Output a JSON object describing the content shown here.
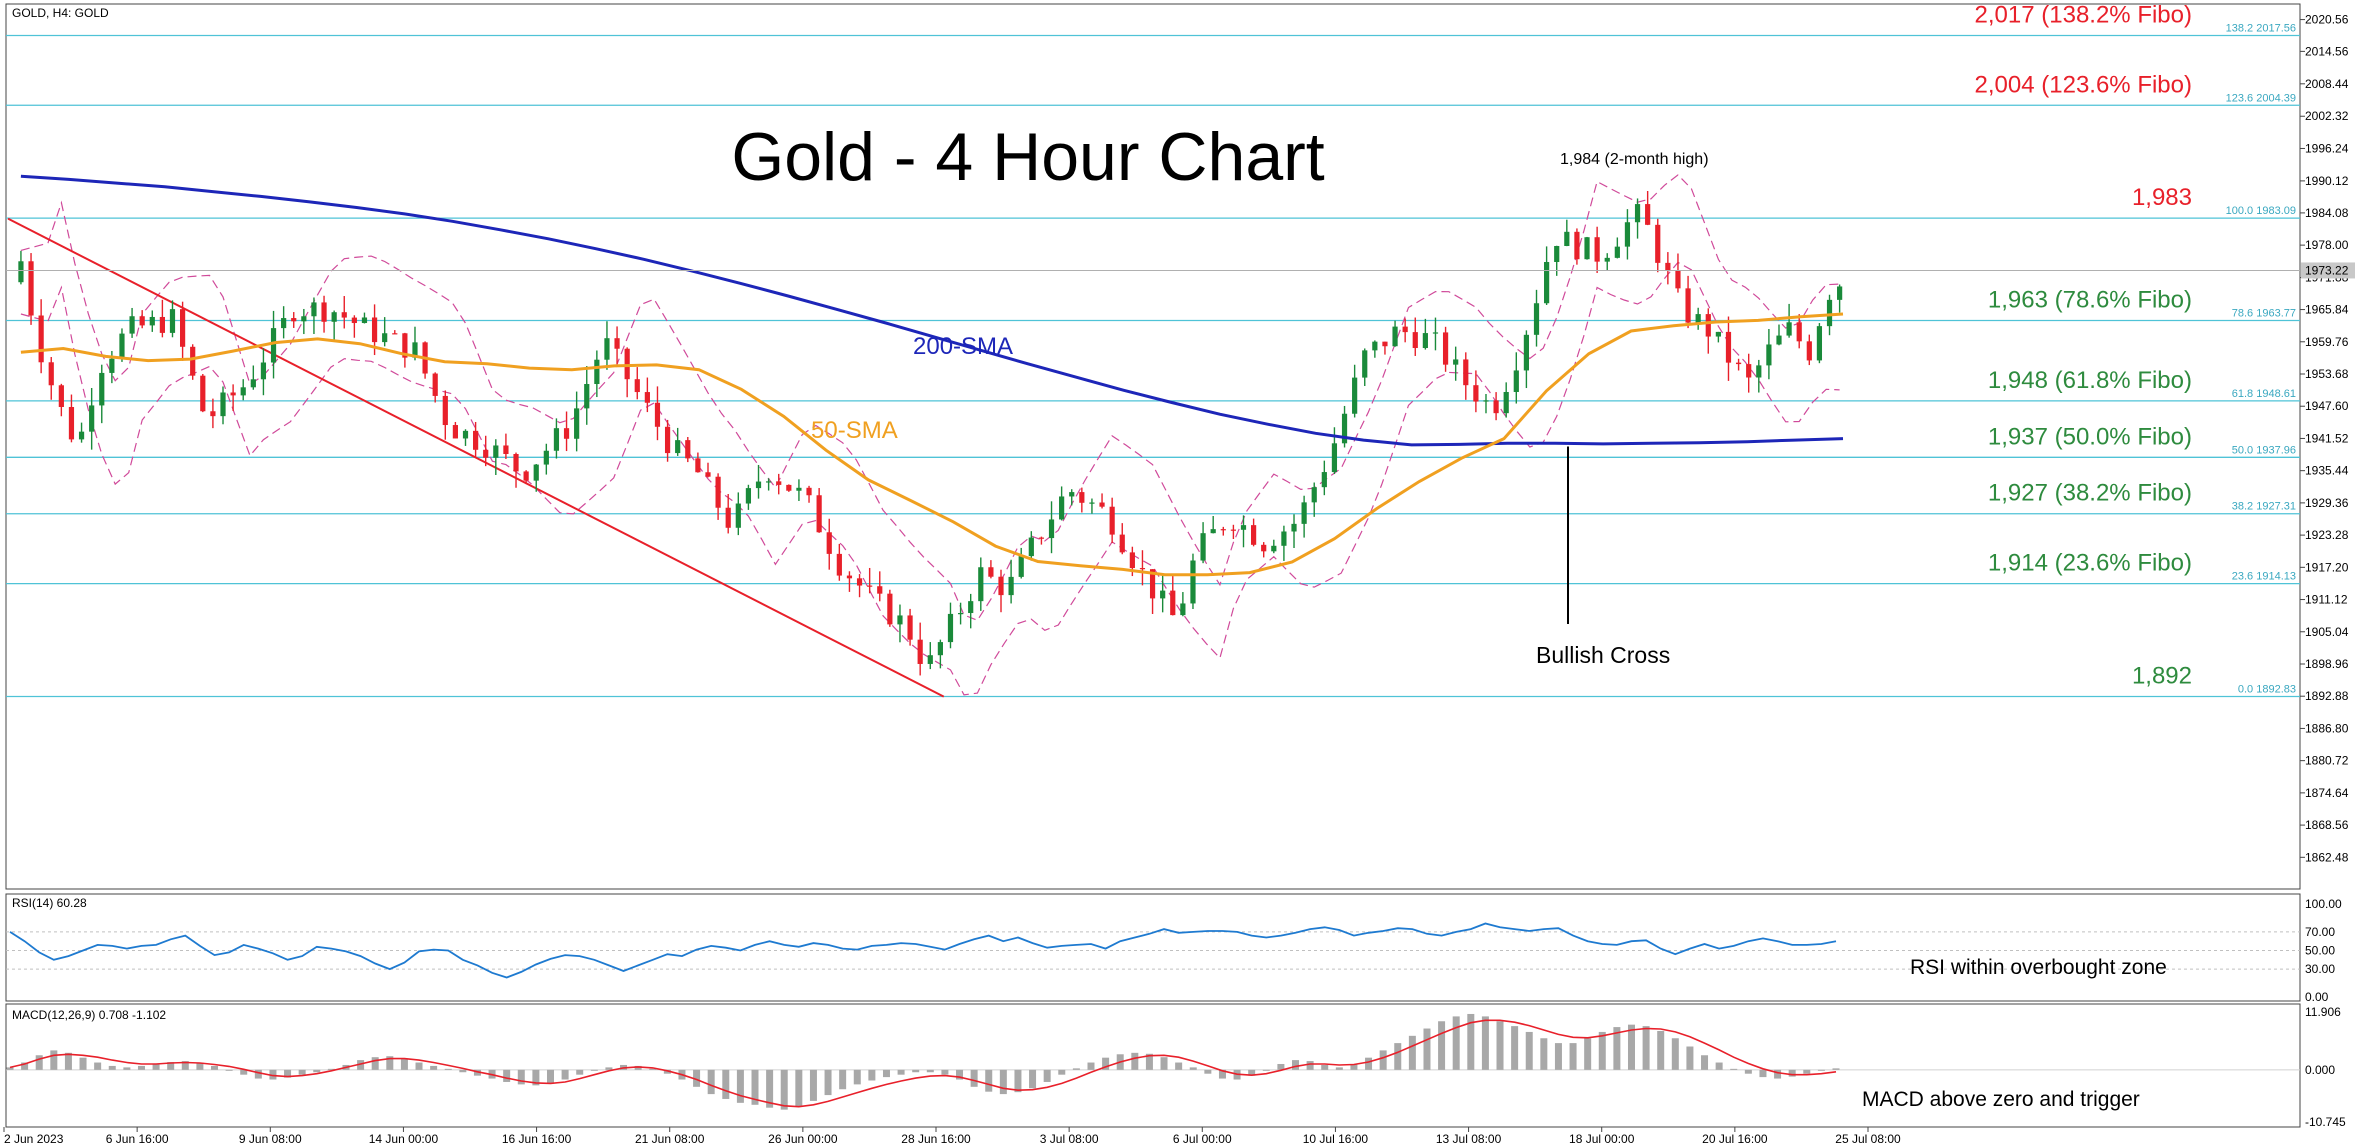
{
  "header": {
    "symbol": "GOLD, H4:  GOLD"
  },
  "title": "Gold - 4 Hour Chart",
  "chart_data": {
    "type": "candlestick",
    "symbol": "GOLD",
    "timeframe": "H4",
    "ylim": [
      1856.5,
      2023.5
    ],
    "price_ticks": [
      "2020.56",
      "2014.56",
      "2008.44",
      "2002.32",
      "1996.24",
      "1990.12",
      "1984.08",
      "1978.00",
      "1971.88",
      "1965.84",
      "1959.76",
      "1953.68",
      "1947.60",
      "1941.52",
      "1935.44",
      "1929.36",
      "1923.28",
      "1917.20",
      "1911.12",
      "1905.04",
      "1898.96",
      "1892.88",
      "1886.80",
      "1880.72",
      "1874.64",
      "1868.56",
      "1862.48"
    ],
    "current_price": "1973.22",
    "x_labels": [
      "2 Jun 2023",
      "6 Jun 16:00",
      "9 Jun 08:00",
      "14 Jun 00:00",
      "16 Jun 16:00",
      "21 Jun 08:00",
      "26 Jun 00:00",
      "28 Jun 16:00",
      "3 Jul 08:00",
      "6 Jul 00:00",
      "10 Jul 16:00",
      "13 Jul 08:00",
      "18 Jul 00:00",
      "20 Jul 16:00",
      "25 Jul 08:00"
    ],
    "fibo_levels": [
      {
        "ratio": "138.2",
        "value": 2017.56,
        "label": "2,017 (138.2% Fibo)",
        "small": "138.2 2017.56"
      },
      {
        "ratio": "123.6",
        "value": 2004.39,
        "label": "2,004 (123.6% Fibo)",
        "small": "123.6 2004.39"
      },
      {
        "ratio": "100.0",
        "value": 1983.09,
        "label": "1,983",
        "small": "100.0 1983.09"
      },
      {
        "ratio": "78.6",
        "value": 1963.77,
        "label": "1,963 (78.6% Fibo)",
        "small": "78.6 1963.77"
      },
      {
        "ratio": "61.8",
        "value": 1948.61,
        "label": "1,948 (61.8% Fibo)",
        "small": "61.8 1948.61"
      },
      {
        "ratio": "50.0",
        "value": 1937.96,
        "label": "1,937 (50.0% Fibo)",
        "small": "50.0 1937.96"
      },
      {
        "ratio": "38.2",
        "value": 1927.31,
        "label": "1,927 (38.2% Fibo)",
        "small": "38.2 1927.31"
      },
      {
        "ratio": "23.6",
        "value": 1914.13,
        "label": "1,914 (23.6% Fibo)",
        "small": "23.6 1914.13"
      },
      {
        "ratio": "0.0",
        "value": 1892.83,
        "label": "1,892",
        "small": "0.0 1892.83"
      }
    ],
    "sma200": [
      1991.0,
      1990.4,
      1989.7,
      1989.0,
      1988.1,
      1987.2,
      1986.2,
      1985.1,
      1983.9,
      1982.5,
      1980.9,
      1979.2,
      1977.3,
      1975.3,
      1973.1,
      1970.8,
      1968.4,
      1965.9,
      1963.4,
      1960.8,
      1958.2,
      1955.6,
      1953.1,
      1950.6,
      1948.3,
      1946.1,
      1944.2,
      1942.5,
      1941.2,
      1940.3,
      1940.4,
      1940.6,
      1940.6,
      1940.5,
      1940.6,
      1940.7,
      1940.9,
      1941.2,
      1941.5
    ],
    "sma50": [
      1957.8,
      1958.5,
      1957.0,
      1956.2,
      1956.5,
      1958.0,
      1959.6,
      1960.3,
      1959.4,
      1957.5,
      1956.0,
      1955.6,
      1954.8,
      1954.5,
      1955.2,
      1955.4,
      1954.5,
      1950.8,
      1945.7,
      1939.3,
      1933.7,
      1929.8,
      1925.8,
      1921.2,
      1918.3,
      1917.5,
      1916.8,
      1915.8,
      1915.8,
      1916.2,
      1918.2,
      1922.6,
      1928.3,
      1933.4,
      1937.8,
      1941.5,
      1950.5,
      1957.5,
      1961.8,
      1962.8,
      1963.5,
      1963.8,
      1964.5,
      1965.0
    ],
    "sma_labels": {
      "sma200": "200-SMA",
      "sma50": "50-SMA"
    },
    "annotations": {
      "high": "1,984 (2-month high)",
      "cross": "Bullish Cross"
    },
    "rsi": {
      "title": "RSI(14) 60.28",
      "ticks": [
        "100.00",
        "70.00",
        "50.00",
        "30.00",
        "0.00"
      ],
      "ylim": [
        0,
        100
      ],
      "values": [
        70,
        60,
        48,
        40,
        44,
        50,
        56,
        55,
        52,
        55,
        56,
        62,
        66,
        55,
        45,
        48,
        56,
        52,
        47,
        40,
        44,
        54,
        52,
        49,
        44,
        36,
        30,
        37,
        49,
        51,
        50,
        40,
        34,
        26,
        21,
        27,
        35,
        41,
        45,
        44,
        40,
        34,
        28,
        34,
        40,
        46,
        44,
        51,
        55,
        53,
        50,
        56,
        60,
        56,
        54,
        58,
        56,
        52,
        51,
        55,
        56,
        58,
        57,
        54,
        51,
        57,
        62,
        66,
        60,
        64,
        58,
        53,
        55,
        56,
        57,
        52,
        60,
        64,
        68,
        73,
        69,
        70,
        71,
        71,
        70,
        66,
        64,
        66,
        69,
        73,
        75,
        72,
        66,
        69,
        71,
        74,
        73,
        68,
        66,
        70,
        73,
        79,
        75,
        73,
        71,
        73,
        74,
        66,
        60,
        57,
        56,
        60,
        61,
        52,
        46,
        52,
        57,
        52,
        55,
        60,
        63,
        60,
        56,
        56,
        57,
        60
      ],
      "label": "RSI within overbought zone"
    },
    "macd": {
      "title": "MACD(12,26,9) 0.708 -1.102",
      "ticks": [
        "11.906",
        "0.000",
        "-10.745"
      ],
      "ylim": [
        -10.745,
        11.906
      ],
      "histogram": [
        0.5,
        1.5,
        3.0,
        4.0,
        3.5,
        2.5,
        1.5,
        0.8,
        0.5,
        0.8,
        1.2,
        1.6,
        1.8,
        1.5,
        0.8,
        0.0,
        -1.0,
        -1.8,
        -2.0,
        -1.6,
        -1.0,
        -0.5,
        0.2,
        1.0,
        2.0,
        2.6,
        2.8,
        2.2,
        1.5,
        0.8,
        0.2,
        -0.5,
        -1.2,
        -1.8,
        -2.5,
        -3.0,
        -3.2,
        -2.8,
        -2.0,
        -1.0,
        -0.2,
        0.5,
        1.0,
        0.8,
        0.2,
        -0.8,
        -2.0,
        -3.5,
        -5.0,
        -6.0,
        -6.8,
        -7.2,
        -7.8,
        -8.2,
        -7.6,
        -6.4,
        -5.2,
        -4.0,
        -3.0,
        -2.2,
        -1.5,
        -1.0,
        -0.5,
        -0.5,
        -1.0,
        -2.0,
        -3.5,
        -4.5,
        -5.0,
        -4.6,
        -3.8,
        -2.5,
        -1.0,
        0.3,
        1.5,
        2.5,
        3.2,
        3.5,
        3.3,
        2.6,
        1.5,
        0.5,
        -0.8,
        -1.8,
        -2.0,
        -1.2,
        0.0,
        1.2,
        2.0,
        1.8,
        1.0,
        0.5,
        1.2,
        2.5,
        4.0,
        5.5,
        7.0,
        8.5,
        10.0,
        11.0,
        11.5,
        11.0,
        10.0,
        9.0,
        7.8,
        6.5,
        5.5,
        5.5,
        6.5,
        7.8,
        8.8,
        9.3,
        9.0,
        8.0,
        6.5,
        4.8,
        3.0,
        1.5,
        0.2,
        -0.8,
        -1.5,
        -1.8,
        -1.4,
        -0.8,
        -0.2,
        0.3
      ],
      "signal": [
        0.5,
        1.2,
        2.2,
        3.0,
        3.2,
        3.0,
        2.6,
        2.0,
        1.5,
        1.2,
        1.2,
        1.4,
        1.5,
        1.4,
        1.1,
        0.7,
        0.1,
        -0.6,
        -1.2,
        -1.4,
        -1.2,
        -0.8,
        -0.2,
        0.5,
        1.2,
        1.9,
        2.3,
        2.3,
        2.0,
        1.5,
        0.9,
        0.3,
        -0.4,
        -1.0,
        -1.7,
        -2.3,
        -2.7,
        -2.8,
        -2.5,
        -1.8,
        -1.0,
        -0.2,
        0.4,
        0.6,
        0.4,
        -0.2,
        -1.0,
        -2.0,
        -3.2,
        -4.3,
        -5.3,
        -6.1,
        -6.8,
        -7.4,
        -7.6,
        -7.2,
        -6.5,
        -5.6,
        -4.7,
        -3.8,
        -3.0,
        -2.3,
        -1.7,
        -1.3,
        -1.2,
        -1.5,
        -2.2,
        -3.0,
        -3.8,
        -4.2,
        -4.1,
        -3.6,
        -2.8,
        -1.7,
        -0.5,
        0.6,
        1.6,
        2.4,
        2.9,
        3.0,
        2.6,
        1.8,
        0.8,
        -0.2,
        -0.9,
        -1.1,
        -0.8,
        -0.1,
        0.7,
        1.2,
        1.2,
        1.0,
        1.1,
        1.6,
        2.5,
        3.6,
        4.9,
        6.2,
        7.5,
        8.7,
        9.7,
        10.2,
        10.2,
        9.8,
        9.1,
        8.2,
        7.3,
        6.7,
        6.6,
        7.0,
        7.6,
        8.2,
        8.5,
        8.4,
        7.8,
        6.8,
        5.5,
        4.1,
        2.6,
        1.3,
        0.2,
        -0.6,
        -1.0,
        -1.0,
        -0.8,
        -0.4
      ],
      "label": "MACD above zero and trigger"
    }
  }
}
